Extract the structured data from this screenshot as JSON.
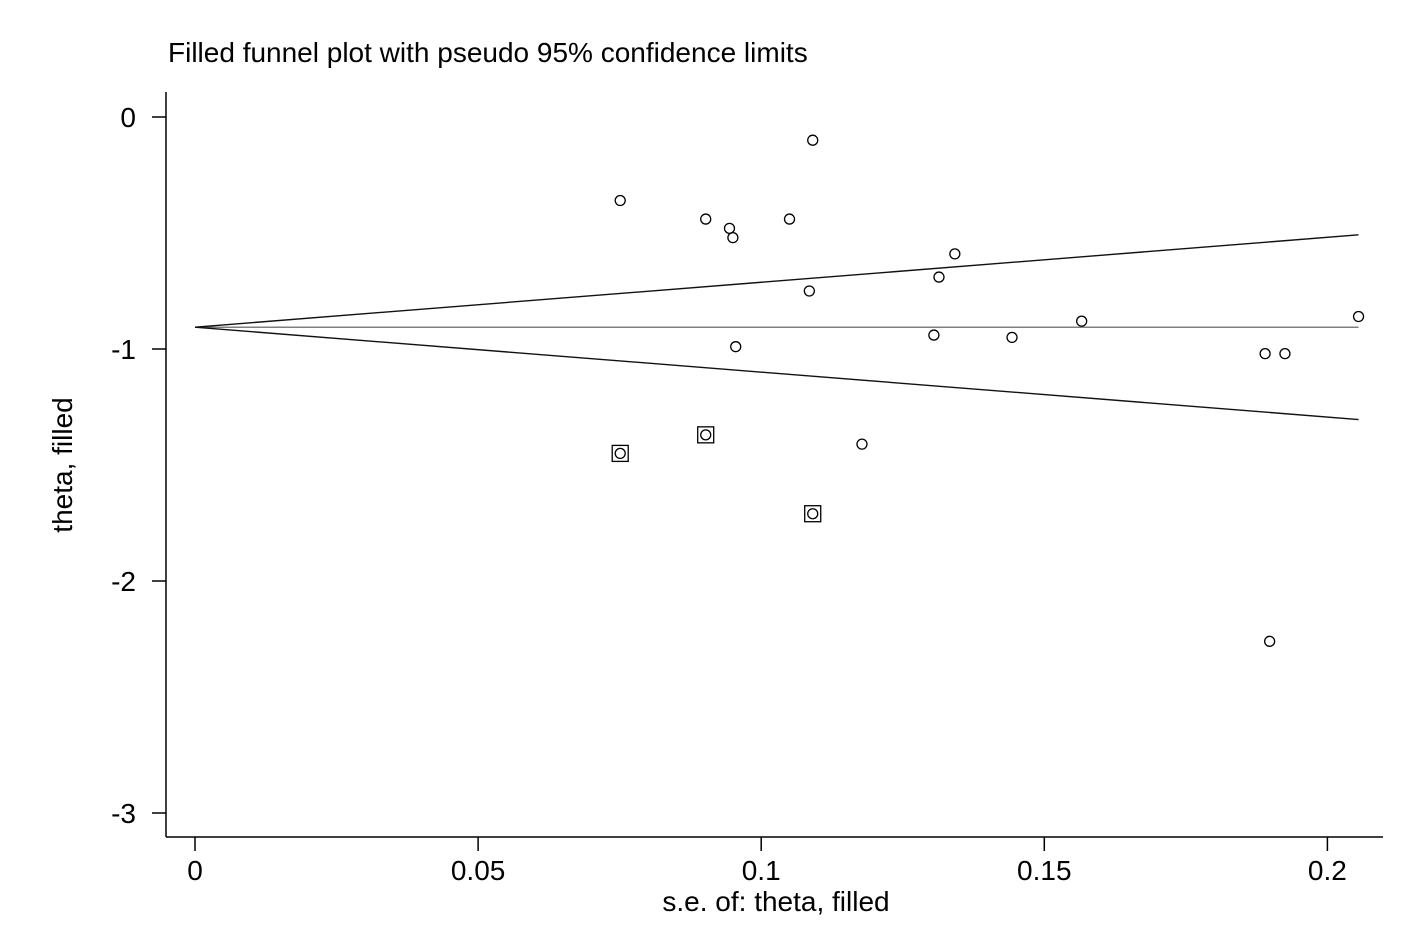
{
  "chart_data": {
    "type": "scatter",
    "title": "Filled funnel plot with pseudo 95% confidence limits",
    "xlabel": "s.e. of: theta, filled",
    "ylabel": "theta, filled",
    "xlim": [
      -0.005,
      0.21
    ],
    "ylim": [
      -3.1,
      0.12
    ],
    "x_ticks": [
      0,
      0.05,
      0.1,
      0.15,
      0.2
    ],
    "x_tick_labels": [
      "0",
      "0.05",
      "0.1",
      "0.15",
      "0.2"
    ],
    "y_ticks": [
      0,
      -1,
      -2,
      -3
    ],
    "y_tick_labels": [
      "0",
      "-1",
      "-2",
      "-3"
    ],
    "pooled_estimate": -0.906,
    "confidence_limits": {
      "upper": [
        [
          0,
          -0.906
        ],
        [
          0.2055,
          -0.508
        ]
      ],
      "lower": [
        [
          0,
          -0.906
        ],
        [
          0.2055,
          -1.304
        ]
      ]
    },
    "series": [
      {
        "marker": "circle",
        "points": [
          {
            "x": 0.0751,
            "y": -0.36
          },
          {
            "x": 0.0902,
            "y": -0.44
          },
          {
            "x": 0.0944,
            "y": -0.48
          },
          {
            "x": 0.095,
            "y": -0.52
          },
          {
            "x": 0.105,
            "y": -0.44
          },
          {
            "x": 0.1091,
            "y": -0.1
          },
          {
            "x": 0.1342,
            "y": -0.59
          },
          {
            "x": 0.1314,
            "y": -0.69
          },
          {
            "x": 0.1085,
            "y": -0.75
          },
          {
            "x": 0.1305,
            "y": -0.94
          },
          {
            "x": 0.0955,
            "y": -0.99
          },
          {
            "x": 0.1443,
            "y": -0.95
          },
          {
            "x": 0.1566,
            "y": -0.88
          },
          {
            "x": 0.189,
            "y": -1.02
          },
          {
            "x": 0.1925,
            "y": -1.02
          },
          {
            "x": 0.2055,
            "y": -0.86
          },
          {
            "x": 0.1178,
            "y": -1.41
          },
          {
            "x": 0.1898,
            "y": -2.26
          }
        ]
      },
      {
        "marker": "square-circle",
        "points": [
          {
            "x": 0.0751,
            "y": -1.45
          },
          {
            "x": 0.0902,
            "y": -1.37
          },
          {
            "x": 0.1091,
            "y": -1.71
          }
        ]
      }
    ]
  }
}
